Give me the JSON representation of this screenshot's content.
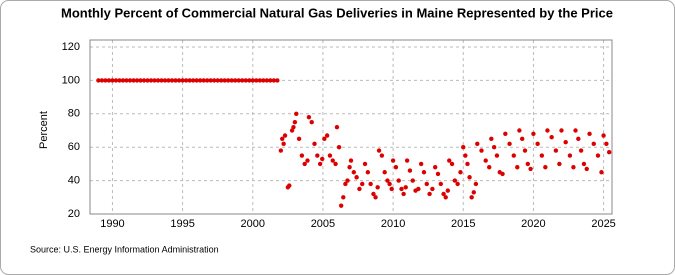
{
  "chart_data": {
    "type": "scatter",
    "title": "Monthly Percent of Commercial Natural Gas Deliveries in Maine Represented by the Price",
    "y_label": "Percent",
    "source": "Source: U.S. Energy Information Administration",
    "color": "#dd0000",
    "grid": true,
    "xlim": [
      1988.4,
      2025.6
    ],
    "ylim": [
      20,
      120
    ],
    "xticks": [
      1990,
      1995,
      2000,
      2005,
      2010,
      2015,
      2020,
      2025
    ],
    "yticks": [
      20,
      40,
      60,
      80,
      100,
      120
    ],
    "x": [
      1989,
      1989.25,
      1989.5,
      1989.75,
      1990,
      1990.25,
      1990.5,
      1990.75,
      1991,
      1991.25,
      1991.5,
      1991.75,
      1992,
      1992.25,
      1992.5,
      1992.75,
      1993,
      1993.25,
      1993.5,
      1993.75,
      1994,
      1994.25,
      1994.5,
      1994.75,
      1995,
      1995.25,
      1995.5,
      1995.75,
      1996,
      1996.25,
      1996.5,
      1996.75,
      1997,
      1997.25,
      1997.5,
      1997.75,
      1998,
      1998.25,
      1998.5,
      1998.75,
      1999,
      1999.25,
      1999.5,
      1999.75,
      2000,
      2000.25,
      2000.5,
      2000.75,
      2001,
      2001.25,
      2001.5,
      2001.75,
      2002.0,
      2002.1,
      2002.2,
      2002.3,
      2002.5,
      2002.6,
      2002.8,
      2002.9,
      2003.0,
      2003.1,
      2003.3,
      2003.5,
      2003.7,
      2003.9,
      2004.0,
      2004.2,
      2004.4,
      2004.6,
      2004.8,
      2004.95,
      2005.1,
      2005.3,
      2005.5,
      2005.7,
      2005.9,
      2006.0,
      2006.15,
      2006.3,
      2006.45,
      2006.6,
      2006.75,
      2006.9,
      2007.0,
      2007.2,
      2007.4,
      2007.6,
      2007.8,
      2008.0,
      2008.2,
      2008.4,
      2008.6,
      2008.75,
      2008.9,
      2009.0,
      2009.2,
      2009.4,
      2009.6,
      2009.75,
      2009.9,
      2010.0,
      2010.2,
      2010.4,
      2010.6,
      2010.75,
      2010.9,
      2011.0,
      2011.2,
      2011.4,
      2011.6,
      2011.8,
      2012.0,
      2012.2,
      2012.4,
      2012.6,
      2012.8,
      2013.0,
      2013.2,
      2013.4,
      2013.6,
      2013.75,
      2013.9,
      2014.0,
      2014.2,
      2014.4,
      2014.6,
      2014.8,
      2015.0,
      2015.15,
      2015.3,
      2015.45,
      2015.6,
      2015.75,
      2015.9,
      2016.0,
      2016.3,
      2016.6,
      2016.85,
      2017.0,
      2017.2,
      2017.4,
      2017.6,
      2017.8,
      2018.0,
      2018.3,
      2018.6,
      2018.85,
      2019.0,
      2019.2,
      2019.4,
      2019.6,
      2019.8,
      2020.0,
      2020.3,
      2020.6,
      2020.85,
      2021.0,
      2021.3,
      2021.6,
      2021.85,
      2022.0,
      2022.3,
      2022.6,
      2022.85,
      2023.0,
      2023.2,
      2023.4,
      2023.6,
      2023.8,
      2024.0,
      2024.3,
      2024.6,
      2024.85,
      2025.0,
      2025.2,
      2025.4
    ],
    "values": [
      100,
      100,
      100,
      100,
      100,
      100,
      100,
      100,
      100,
      100,
      100,
      100,
      100,
      100,
      100,
      100,
      100,
      100,
      100,
      100,
      100,
      100,
      100,
      100,
      100,
      100,
      100,
      100,
      100,
      100,
      100,
      100,
      100,
      100,
      100,
      100,
      100,
      100,
      100,
      100,
      100,
      100,
      100,
      100,
      100,
      100,
      100,
      100,
      100,
      100,
      100,
      100,
      58,
      65,
      62,
      67,
      36,
      37,
      70,
      72,
      75,
      80,
      65,
      55,
      50,
      52,
      78,
      75,
      62,
      55,
      50,
      53,
      65,
      67,
      55,
      52,
      50,
      72,
      60,
      25,
      30,
      38,
      40,
      48,
      52,
      45,
      42,
      35,
      38,
      50,
      45,
      38,
      32,
      30,
      36,
      58,
      55,
      45,
      40,
      38,
      35,
      52,
      48,
      40,
      35,
      32,
      36,
      52,
      46,
      40,
      34,
      35,
      50,
      45,
      38,
      32,
      35,
      48,
      44,
      38,
      32,
      30,
      34,
      52,
      50,
      40,
      38,
      45,
      60,
      55,
      50,
      42,
      30,
      33,
      38,
      62,
      58,
      52,
      48,
      65,
      60,
      55,
      45,
      44,
      68,
      62,
      55,
      48,
      70,
      65,
      58,
      50,
      47,
      68,
      62,
      55,
      48,
      70,
      66,
      58,
      50,
      70,
      63,
      55,
      48,
      70,
      65,
      58,
      50,
      47,
      68,
      62,
      55,
      45,
      67,
      62,
      57
    ]
  }
}
